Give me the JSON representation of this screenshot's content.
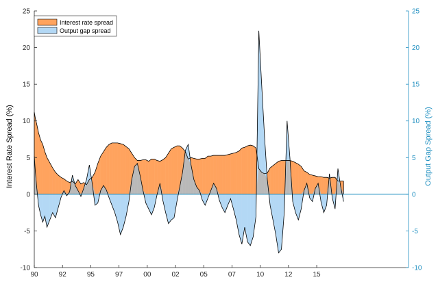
{
  "chart_data": {
    "type": "area",
    "title": "",
    "ylabel_left": "Interest Rate Spread (%)",
    "ylabel_right": "Output Gap Spread (%)",
    "xlim": [
      1990,
      2016.5
    ],
    "ylim": [
      -10,
      25
    ],
    "yticks": [
      -10,
      -5,
      0,
      5,
      10,
      15,
      20,
      25
    ],
    "xticks": [
      {
        "value": 1990,
        "label": "90"
      },
      {
        "value": 1992,
        "label": "92"
      },
      {
        "value": 1994,
        "label": "95"
      },
      {
        "value": 1996,
        "label": "97"
      },
      {
        "value": 1998,
        "label": "00"
      },
      {
        "value": 2000,
        "label": "02"
      },
      {
        "value": 2002,
        "label": "05"
      },
      {
        "value": 2004,
        "label": "07"
      },
      {
        "value": 2006,
        "label": "10"
      },
      {
        "value": 2008,
        "label": "12"
      },
      {
        "value": 2010,
        "label": "15"
      }
    ],
    "legend": "top-left",
    "grid": false,
    "colors": {
      "interest_fill": "#ffa35e",
      "output_fill": "#b3d8f5",
      "overlap_fill": "#b9b9b9",
      "line": "#000000",
      "zero_line": "#1f8fc0",
      "right_axis": "#1f8fc0"
    },
    "series": [
      {
        "name": "Interest rate spread",
        "x": [
          1990.0,
          1990.08,
          1990.17,
          1990.3,
          1990.45,
          1990.6,
          1990.75,
          1990.9,
          1991.1,
          1991.3,
          1991.5,
          1991.7,
          1991.9,
          1992.1,
          1992.3,
          1992.5,
          1992.7,
          1992.9,
          1993.1,
          1993.3,
          1993.5,
          1993.7,
          1993.9,
          1994.1,
          1994.3,
          1994.5,
          1994.7,
          1994.9,
          1995.1,
          1995.3,
          1995.5,
          1995.7,
          1995.9,
          1996.1,
          1996.3,
          1996.5,
          1996.7,
          1996.9,
          1997.1,
          1997.3,
          1997.5,
          1997.7,
          1997.9,
          1998.1,
          1998.3,
          1998.5,
          1998.7,
          1998.9,
          1999.1,
          1999.3,
          1999.5,
          1999.7,
          1999.9,
          2000.1,
          2000.3,
          2000.5,
          2000.7,
          2000.9,
          2001.1,
          2001.3,
          2001.5,
          2001.7,
          2001.9,
          2002.1,
          2002.3,
          2002.5,
          2002.7,
          2002.9,
          2003.1,
          2003.3,
          2003.5,
          2003.7,
          2003.9,
          2004.1,
          2004.3,
          2004.5,
          2004.7,
          2004.9,
          2005.1,
          2005.3,
          2005.5,
          2005.7,
          2005.9,
          2006.1,
          2006.3,
          2006.5,
          2006.7,
          2006.9,
          2007.1,
          2007.3,
          2007.5,
          2007.7,
          2007.9,
          2008.1,
          2008.3,
          2008.5,
          2008.7,
          2008.9,
          2009.1,
          2009.3,
          2009.5,
          2009.7,
          2009.9,
          2010.1,
          2010.3,
          2010.5,
          2010.7,
          2010.9,
          2011.1,
          2011.3,
          2011.5,
          2011.7,
          2011.9
        ],
        "values": [
          11.2,
          10.3,
          9.6,
          8.4,
          7.4,
          6.8,
          5.8,
          5.0,
          4.3,
          3.6,
          3.0,
          2.6,
          2.3,
          2.1,
          1.8,
          1.6,
          1.8,
          1.4,
          2.0,
          1.4,
          1.6,
          1.3,
          2.0,
          2.3,
          3.0,
          4.2,
          5.2,
          5.8,
          6.4,
          6.8,
          7.0,
          7.0,
          7.0,
          6.9,
          6.8,
          6.5,
          6.2,
          5.6,
          5.0,
          4.6,
          4.6,
          4.7,
          4.7,
          4.5,
          4.8,
          4.8,
          4.6,
          4.5,
          4.7,
          5.0,
          5.6,
          6.2,
          6.4,
          6.6,
          6.6,
          6.3,
          5.8,
          4.8,
          5.0,
          4.9,
          4.8,
          4.8,
          4.9,
          4.9,
          5.2,
          5.2,
          5.3,
          5.3,
          5.3,
          5.3,
          5.3,
          5.4,
          5.5,
          5.6,
          5.7,
          5.9,
          6.3,
          6.4,
          6.6,
          6.7,
          6.6,
          6.3,
          3.5,
          3.0,
          2.8,
          2.9,
          3.6,
          3.9,
          4.2,
          4.5,
          4.6,
          4.6,
          4.6,
          4.6,
          4.5,
          4.3,
          4.1,
          3.8,
          3.2,
          3.0,
          2.7,
          2.6,
          2.5,
          2.4,
          2.4,
          2.3,
          2.3,
          2.2,
          2.3,
          2.3,
          1.8,
          1.8,
          1.8
        ]
      },
      {
        "name": "Output gap spread",
        "x": [
          1990.0,
          1990.08,
          1990.17,
          1990.3,
          1990.45,
          1990.6,
          1990.75,
          1990.9,
          1991.1,
          1991.3,
          1991.5,
          1991.7,
          1991.9,
          1992.1,
          1992.3,
          1992.5,
          1992.7,
          1992.9,
          1993.1,
          1993.3,
          1993.5,
          1993.7,
          1993.9,
          1994.1,
          1994.3,
          1994.5,
          1994.7,
          1994.9,
          1995.1,
          1995.3,
          1995.5,
          1995.7,
          1995.9,
          1996.1,
          1996.3,
          1996.5,
          1996.7,
          1996.9,
          1997.1,
          1997.3,
          1997.5,
          1997.7,
          1997.9,
          1998.1,
          1998.3,
          1998.5,
          1998.7,
          1998.9,
          1999.1,
          1999.3,
          1999.5,
          1999.7,
          1999.9,
          2000.1,
          2000.3,
          2000.5,
          2000.7,
          2000.9,
          2001.1,
          2001.3,
          2001.5,
          2001.7,
          2001.9,
          2002.1,
          2002.3,
          2002.5,
          2002.7,
          2002.9,
          2003.1,
          2003.3,
          2003.5,
          2003.7,
          2003.9,
          2004.1,
          2004.3,
          2004.5,
          2004.7,
          2004.9,
          2005.1,
          2005.3,
          2005.5,
          2005.7,
          2005.9,
          2006.1,
          2006.3,
          2006.5,
          2006.7,
          2006.9,
          2007.1,
          2007.3,
          2007.5,
          2007.7,
          2007.9,
          2008.1,
          2008.3,
          2008.5,
          2008.7,
          2008.9,
          2009.1,
          2009.3,
          2009.5,
          2009.7,
          2009.9,
          2010.1,
          2010.3,
          2010.5,
          2010.7,
          2010.9,
          2011.1,
          2011.3,
          2011.5,
          2011.7,
          2011.9
        ],
        "values": [
          5.2,
          3.0,
          1.0,
          -1.5,
          -2.8,
          -3.8,
          -3.0,
          -4.5,
          -3.5,
          -2.5,
          -3.2,
          -1.8,
          -0.4,
          0.5,
          -0.2,
          0.3,
          2.6,
          1.2,
          0.5,
          -0.3,
          0.8,
          2.0,
          4.0,
          1.5,
          -1.5,
          -1.2,
          0.5,
          1.2,
          0.6,
          -0.5,
          -1.5,
          -2.5,
          -3.8,
          -5.5,
          -4.5,
          -3.0,
          -1.0,
          2.0,
          3.8,
          4.2,
          2.5,
          0.5,
          -1.2,
          -2.0,
          -2.8,
          -1.8,
          0.0,
          1.5,
          -0.8,
          -2.5,
          -4.0,
          -3.5,
          -3.2,
          -1.0,
          1.0,
          3.0,
          6.0,
          6.8,
          4.0,
          2.0,
          1.0,
          0.5,
          -0.8,
          -1.5,
          -0.5,
          0.5,
          1.5,
          0.8,
          -0.8,
          -1.8,
          -2.5,
          -1.5,
          -0.6,
          -2.0,
          -3.5,
          -5.5,
          -6.8,
          -4.5,
          -6.5,
          -7.0,
          -5.8,
          -3.0,
          22.3,
          15.0,
          8.0,
          2.0,
          -1.5,
          -3.5,
          -5.5,
          -8.0,
          -7.5,
          -2.5,
          10.0,
          5.0,
          -1.0,
          -2.5,
          -3.5,
          -2.0,
          0.5,
          1.5,
          -0.5,
          -1.0,
          0.8,
          1.5,
          -1.0,
          -2.5,
          -1.5,
          2.8,
          -0.5,
          -2.0,
          3.5,
          1.0,
          -1.0
        ]
      }
    ]
  }
}
